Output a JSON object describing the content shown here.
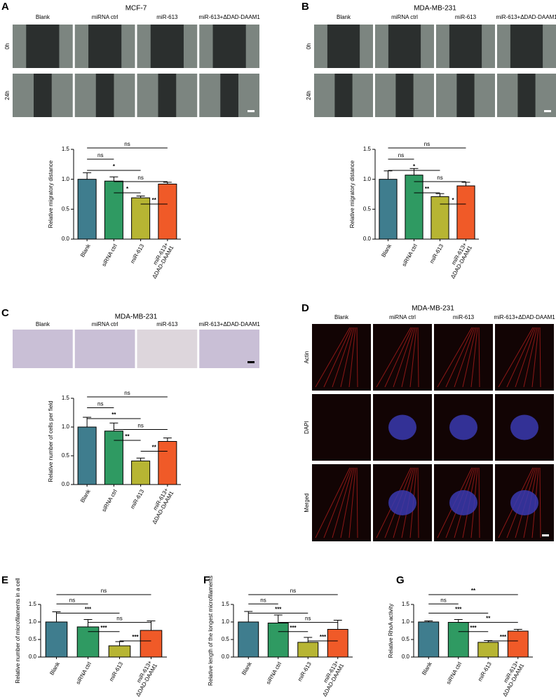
{
  "image_panels": [
    {
      "panel": "A",
      "title": "MCF-7",
      "columns": [
        "Blank",
        "miRNA ctrl",
        "miR-613",
        "miR-613+ΔDAD-DAAM1"
      ],
      "rows": [
        "0h",
        "24h"
      ]
    },
    {
      "panel": "B",
      "title": "MDA-MB-231",
      "columns": [
        "Blank",
        "miRNA ctrl",
        "miR-613",
        "miR-613+ΔDAD-DAAM1"
      ],
      "rows": [
        "0h",
        "24h"
      ]
    },
    {
      "panel": "C",
      "title": "MDA-MB-231",
      "columns": [
        "Blank",
        "miRNA ctrl",
        "miR-613",
        "miR-613+ΔDAD-DAAM1"
      ]
    },
    {
      "panel": "D",
      "title": "MDA-MB-231",
      "columns": [
        "Blank",
        "miRNA ctrl",
        "miR-613",
        "miR-613+ΔDAD-DAAM1"
      ],
      "rows": [
        "Actin",
        "DAPI",
        "Merged"
      ]
    }
  ],
  "chart_data": [
    {
      "type": "bar",
      "y_label": "Relative migratory distance",
      "categories": [
        "Blank",
        "siRNA ctrl",
        "miR-613",
        "miR-613+ΔDAD-DAAM1"
      ],
      "colors": [
        "#3f7d8e",
        "#2f9a62",
        "#b7b533",
        "#f05a28"
      ],
      "values": [
        1.0,
        0.97,
        0.69,
        0.92
      ],
      "errors": [
        0.11,
        0.07,
        0.03,
        0.03
      ],
      "ylim": [
        0,
        1.5
      ],
      "yticks": [
        {
          "value": 0,
          "label": "0.0"
        },
        {
          "value": 0.5,
          "label": "0.5"
        },
        {
          "value": 1,
          "label": "1.0"
        },
        {
          "value": 1.5,
          "label": "1.5"
        }
      ],
      "comparisons": [
        {
          "label": "ns",
          "pair": [
            "Blank",
            "miR-613+ΔDAD-DAAM1"
          ]
        },
        {
          "label": "ns",
          "pair": [
            "Blank",
            "siRNA ctrl"
          ]
        },
        {
          "label": "*",
          "pair": [
            "Blank",
            "miR-613"
          ]
        },
        {
          "label": "ns",
          "pair": [
            "siRNA ctrl",
            "miR-613+ΔDAD-DAAM1"
          ]
        },
        {
          "label": "*",
          "pair": [
            "siRNA ctrl",
            "miR-613"
          ]
        },
        {
          "label": "**",
          "pair": [
            "miR-613",
            "miR-613+ΔDAD-DAAM1"
          ]
        }
      ]
    },
    {
      "type": "bar",
      "y_label": "Relative migratory distance",
      "categories": [
        "Blank",
        "siRNA ctrl",
        "miR-613",
        "miR-613+ΔDAD-DAAM1"
      ],
      "colors": [
        "#3f7d8e",
        "#2f9a62",
        "#b7b533",
        "#f05a28"
      ],
      "values": [
        1.0,
        1.07,
        0.71,
        0.89
      ],
      "errors": [
        0.14,
        0.11,
        0.05,
        0.06
      ],
      "ylim": [
        0,
        1.5
      ],
      "yticks": [
        {
          "value": 0,
          "label": "0.0"
        },
        {
          "value": 0.5,
          "label": "0.5"
        },
        {
          "value": 1,
          "label": "1.0"
        },
        {
          "value": 1.5,
          "label": "1.5"
        }
      ],
      "comparisons": [
        {
          "label": "ns",
          "pair": [
            "Blank",
            "miR-613+ΔDAD-DAAM1"
          ]
        },
        {
          "label": "ns",
          "pair": [
            "Blank",
            "siRNA ctrl"
          ]
        },
        {
          "label": "*",
          "pair": [
            "Blank",
            "miR-613"
          ]
        },
        {
          "label": "ns",
          "pair": [
            "siRNA ctrl",
            "miR-613+ΔDAD-DAAM1"
          ]
        },
        {
          "label": "**",
          "pair": [
            "siRNA ctrl",
            "miR-613"
          ]
        },
        {
          "label": "*",
          "pair": [
            "miR-613",
            "miR-613+ΔDAD-DAAM1"
          ]
        }
      ]
    },
    {
      "type": "bar",
      "y_label": "Relative number of cells per field",
      "categories": [
        "Blank",
        "siRNA ctrl",
        "miR-613",
        "miR-613+ΔDAD-DAAM1"
      ],
      "colors": [
        "#3f7d8e",
        "#2f9a62",
        "#b7b533",
        "#f05a28"
      ],
      "values": [
        1.0,
        0.93,
        0.41,
        0.75
      ],
      "errors": [
        0.17,
        0.14,
        0.05,
        0.06
      ],
      "ylim": [
        0,
        1.5
      ],
      "yticks": [
        {
          "value": 0,
          "label": "0.0"
        },
        {
          "value": 0.5,
          "label": "0.5"
        },
        {
          "value": 1,
          "label": "1.0"
        },
        {
          "value": 1.5,
          "label": "1.5"
        }
      ],
      "comparisons": [
        {
          "label": "ns",
          "pair": [
            "Blank",
            "miR-613+ΔDAD-DAAM1"
          ]
        },
        {
          "label": "ns",
          "pair": [
            "Blank",
            "siRNA ctrl"
          ]
        },
        {
          "label": "**",
          "pair": [
            "Blank",
            "miR-613"
          ]
        },
        {
          "label": "ns",
          "pair": [
            "siRNA ctrl",
            "miR-613+ΔDAD-DAAM1"
          ]
        },
        {
          "label": "**",
          "pair": [
            "siRNA ctrl",
            "miR-613"
          ]
        },
        {
          "label": "**",
          "pair": [
            "miR-613",
            "miR-613+ΔDAD-DAAM1"
          ]
        }
      ]
    },
    {
      "type": "bar",
      "panel": "E",
      "y_label": "Relative number of microfilaments in a cell",
      "categories": [
        "Blank",
        "siRNA ctrl",
        "miR-613",
        "miR-613+ΔDAD-DAAM1"
      ],
      "colors": [
        "#3f7d8e",
        "#2f9a62",
        "#b7b533",
        "#f05a28"
      ],
      "values": [
        1.0,
        0.86,
        0.32,
        0.76
      ],
      "errors": [
        0.29,
        0.21,
        0.12,
        0.27
      ],
      "ylim": [
        0,
        1.5
      ],
      "yticks": [
        {
          "value": 0,
          "label": "0.0"
        },
        {
          "value": 0.5,
          "label": "0.5"
        },
        {
          "value": 1,
          "label": "1.0"
        },
        {
          "value": 1.5,
          "label": "1.5"
        }
      ],
      "comparisons": [
        {
          "label": "ns",
          "pair": [
            "Blank",
            "miR-613+ΔDAD-DAAM1"
          ]
        },
        {
          "label": "ns",
          "pair": [
            "Blank",
            "siRNA ctrl"
          ]
        },
        {
          "label": "***",
          "pair": [
            "Blank",
            "miR-613"
          ]
        },
        {
          "label": "ns",
          "pair": [
            "siRNA ctrl",
            "miR-613+ΔDAD-DAAM1"
          ]
        },
        {
          "label": "***",
          "pair": [
            "siRNA ctrl",
            "miR-613"
          ]
        },
        {
          "label": "***",
          "pair": [
            "miR-613",
            "miR-613+ΔDAD-DAAM1"
          ]
        }
      ]
    },
    {
      "type": "bar",
      "panel": "F",
      "y_label": "Relative length of the longest microfilaments",
      "categories": [
        "Blank",
        "siRNA ctrl",
        "miR-613",
        "miR-613+ΔDAD-DAAM1"
      ],
      "colors": [
        "#3f7d8e",
        "#2f9a62",
        "#b7b533",
        "#f05a28"
      ],
      "values": [
        1.0,
        0.97,
        0.42,
        0.79
      ],
      "errors": [
        0.3,
        0.23,
        0.14,
        0.26
      ],
      "ylim": [
        0,
        1.5
      ],
      "yticks": [
        {
          "value": 0,
          "label": "0.0"
        },
        {
          "value": 0.5,
          "label": "0.5"
        },
        {
          "value": 1,
          "label": "1.0"
        },
        {
          "value": 1.5,
          "label": "1.5"
        }
      ],
      "comparisons": [
        {
          "label": "ns",
          "pair": [
            "Blank",
            "miR-613+ΔDAD-DAAM1"
          ]
        },
        {
          "label": "ns",
          "pair": [
            "Blank",
            "siRNA ctrl"
          ]
        },
        {
          "label": "***",
          "pair": [
            "Blank",
            "miR-613"
          ]
        },
        {
          "label": "ns",
          "pair": [
            "siRNA ctrl",
            "miR-613+ΔDAD-DAAM1"
          ]
        },
        {
          "label": "***",
          "pair": [
            "siRNA ctrl",
            "miR-613"
          ]
        },
        {
          "label": "***",
          "pair": [
            "miR-613",
            "miR-613+ΔDAD-DAAM1"
          ]
        }
      ]
    },
    {
      "type": "bar",
      "panel": "G",
      "y_label": "Relative RhoA activity",
      "categories": [
        "Blank",
        "siRNA ctrl",
        "miR-613",
        "miR-613+ΔDAD-DAAM1"
      ],
      "colors": [
        "#3f7d8e",
        "#2f9a62",
        "#b7b533",
        "#f05a28"
      ],
      "values": [
        1.0,
        0.99,
        0.42,
        0.74
      ],
      "errors": [
        0.03,
        0.08,
        0.05,
        0.05
      ],
      "ylim": [
        0,
        1.5
      ],
      "yticks": [
        {
          "value": 0,
          "label": "0.0"
        },
        {
          "value": 0.5,
          "label": "0.5"
        },
        {
          "value": 1,
          "label": "1.0"
        },
        {
          "value": 1.5,
          "label": "1.5"
        }
      ],
      "comparisons": [
        {
          "label": "**",
          "pair": [
            "Blank",
            "miR-613+ΔDAD-DAAM1"
          ]
        },
        {
          "label": "ns",
          "pair": [
            "Blank",
            "siRNA ctrl"
          ]
        },
        {
          "label": "***",
          "pair": [
            "Blank",
            "miR-613"
          ]
        },
        {
          "label": "**",
          "pair": [
            "siRNA ctrl",
            "miR-613+ΔDAD-DAAM1"
          ]
        },
        {
          "label": "***",
          "pair": [
            "siRNA ctrl",
            "miR-613"
          ]
        },
        {
          "label": "***",
          "pair": [
            "miR-613",
            "miR-613+ΔDAD-DAAM1"
          ]
        }
      ]
    }
  ]
}
